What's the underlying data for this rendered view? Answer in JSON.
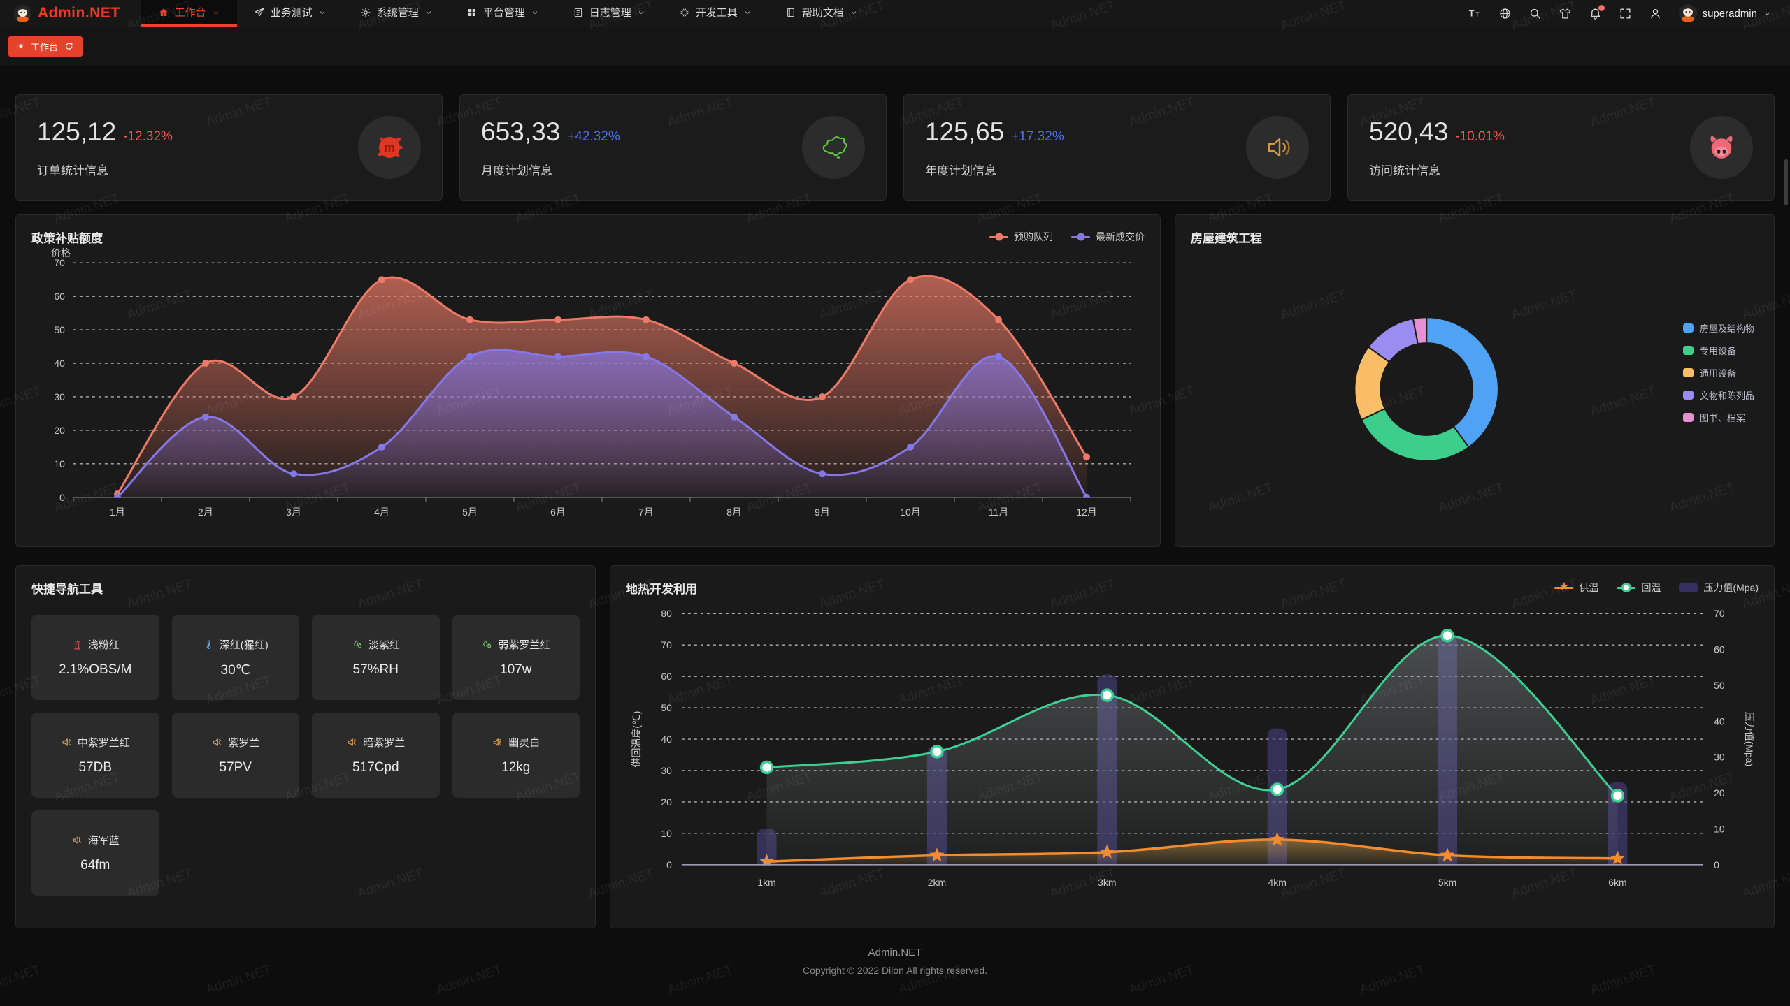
{
  "nav": {
    "logo": "Admin.NET",
    "items": [
      {
        "label": "工作台",
        "icon": "home-icon",
        "active": true
      },
      {
        "label": "业务测试",
        "icon": "send-icon",
        "active": false
      },
      {
        "label": "系统管理",
        "icon": "gear-icon",
        "active": false
      },
      {
        "label": "平台管理",
        "icon": "grid-icon",
        "active": false
      },
      {
        "label": "日志管理",
        "icon": "log-icon",
        "active": false
      },
      {
        "label": "开发工具",
        "icon": "cpu-icon",
        "active": false
      },
      {
        "label": "帮助文档",
        "icon": "book-icon",
        "active": false
      }
    ],
    "right_icons": [
      "font-size-icon",
      "language-icon",
      "search-icon",
      "theme-icon",
      "bell-icon",
      "fullscreen-icon",
      "user-icon"
    ],
    "username": "superadmin"
  },
  "tabbar": {
    "active_tab": "工作台"
  },
  "stat_cards": [
    {
      "value": "125,12",
      "delta": "-12.32%",
      "delta_color": "#f25a4d",
      "label": "订单统计信息",
      "icon": "meetup-icon"
    },
    {
      "value": "653,33",
      "delta": "+42.32%",
      "delta_color": "#4d70f0",
      "label": "月度计划信息",
      "icon": "china-map-icon"
    },
    {
      "value": "125,65",
      "delta": "+17.32%",
      "delta_color": "#4d70f0",
      "label": "年度计划信息",
      "icon": "speaker-icon"
    },
    {
      "value": "520,43",
      "delta": "-10.01%",
      "delta_color": "#f25a4d",
      "label": "访问统计信息",
      "icon": "pig-icon"
    }
  ],
  "chart_data": [
    {
      "type": "line",
      "title": "政策补贴额度",
      "ylabel": "价格",
      "categories": [
        "1月",
        "2月",
        "3月",
        "4月",
        "5月",
        "6月",
        "7月",
        "8月",
        "9月",
        "10月",
        "11月",
        "12月"
      ],
      "series": [
        {
          "name": "预购队列",
          "color": "#ec7a66",
          "values": [
            1,
            40,
            30,
            65,
            53,
            53,
            53,
            40,
            30,
            65,
            53,
            12
          ]
        },
        {
          "name": "最新成交价",
          "color": "#8677e8",
          "values": [
            0,
            24,
            7,
            15,
            42,
            42,
            42,
            24,
            7,
            15,
            42,
            0
          ]
        }
      ],
      "ylim": [
        0,
        70
      ],
      "grid_dashed": true,
      "legend_position": "top-right"
    },
    {
      "type": "donut",
      "title": "房屋建筑工程",
      "slices": [
        {
          "label": "房屋及结构物",
          "value": 40,
          "color": "#4fa2f4"
        },
        {
          "label": "专用设备",
          "value": 28,
          "color": "#3dce8c"
        },
        {
          "label": "通用设备",
          "value": 17,
          "color": "#f9bd66"
        },
        {
          "label": "文物和陈列品",
          "value": 12,
          "color": "#9a8cf0"
        },
        {
          "label": "图书、档案",
          "value": 3,
          "color": "#e78fd5"
        }
      ],
      "legend_position": "right"
    },
    {
      "type": "line-bar",
      "title": "地热开发利用",
      "categories": [
        "1km",
        "2km",
        "3km",
        "4km",
        "5km",
        "6km"
      ],
      "left_axis": {
        "label": "供回温度(℃)",
        "range": [
          0,
          80
        ]
      },
      "right_axis": {
        "label": "压力值(Mpa)",
        "range": [
          0,
          70
        ]
      },
      "series": [
        {
          "name": "供温",
          "type": "line",
          "marker": "star",
          "color": "#f58b2c",
          "axis": "left",
          "values": [
            1,
            3,
            4,
            8,
            3,
            2
          ]
        },
        {
          "name": "回温",
          "type": "line",
          "marker": "circle",
          "color": "#3ecf93",
          "axis": "left",
          "values": [
            31,
            36,
            54,
            24,
            73,
            22
          ]
        },
        {
          "name": "压力值(Mpa)",
          "type": "bar",
          "color": "#46417e",
          "axis": "right",
          "values": [
            10,
            33,
            53,
            38,
            64,
            23
          ]
        }
      ],
      "legend_position": "top-right"
    }
  ],
  "quick_nav": {
    "title": "快捷导航工具",
    "buttons": [
      {
        "label": "浅粉红",
        "value": "2.1%OBS/M",
        "icon": "hydrant-icon",
        "icon_color": "#e04848"
      },
      {
        "label": "深红(猩红)",
        "value": "30℃",
        "icon": "thermometer-icon",
        "icon_color": "#6b9bd2"
      },
      {
        "label": "淡紫红",
        "value": "57%RH",
        "icon": "drops-icon",
        "icon_color": "#7bc96a"
      },
      {
        "label": "弱紫罗兰红",
        "value": "107w",
        "icon": "drops-icon",
        "icon_color": "#7bc96a"
      },
      {
        "label": "中紫罗兰红",
        "value": "57DB",
        "icon": "speaker-small-icon",
        "icon_color": "#e8a55a"
      },
      {
        "label": "紫罗兰",
        "value": "57PV",
        "icon": "speaker-small-icon",
        "icon_color": "#e8a55a"
      },
      {
        "label": "暗紫罗兰",
        "value": "517Cpd",
        "icon": "speaker-small-icon",
        "icon_color": "#e8a55a"
      },
      {
        "label": "幽灵白",
        "value": "12kg",
        "icon": "speaker-small-icon",
        "icon_color": "#e8a55a"
      },
      {
        "label": "海军蓝",
        "value": "64fm",
        "icon": "speaker-small-icon",
        "icon_color": "#e8a55a"
      }
    ]
  },
  "footer": {
    "line1": "Admin.NET",
    "line2": "Copyright © 2022 Dilon All rights reserved."
  },
  "watermark_text": "Admin.NET"
}
